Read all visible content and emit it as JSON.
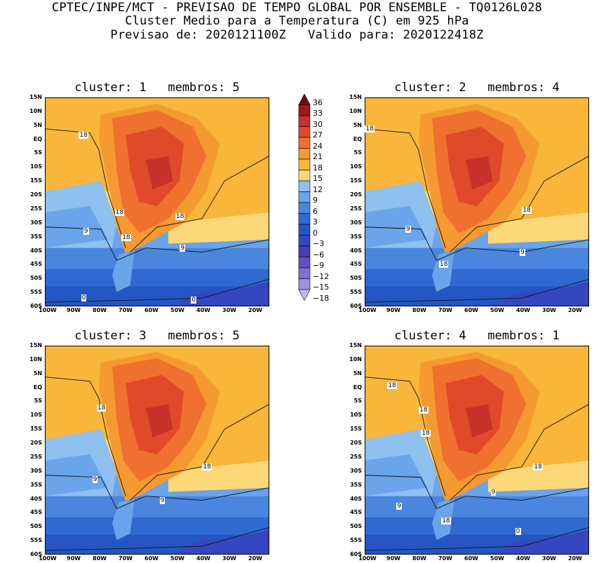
{
  "header": {
    "line1": "CPTEC/INPE/MCT - PREVISAO DE TEMPO GLOBAL POR ENSEMBLE - TQ0126L028",
    "line2": "Cluster Medio para a Temperatura (C) em 925 hPa",
    "line3": "Previsao de: 2020121100Z   Valido para: 2020122418Z"
  },
  "lat_labels": [
    "15N",
    "10N",
    "5N",
    "EQ",
    "5S",
    "10S",
    "15S",
    "20S",
    "25S",
    "30S",
    "35S",
    "40S",
    "45S",
    "50S",
    "55S",
    "60S"
  ],
  "lon_labels": [
    "100W",
    "90W",
    "80W",
    "70W",
    "60W",
    "50W",
    "40W",
    "30W",
    "20W"
  ],
  "colorbar": {
    "labels": [
      "36",
      "33",
      "30",
      "27",
      "24",
      "21",
      "18",
      "15",
      "12",
      "9",
      "6",
      "3",
      "0",
      "-3",
      "-6",
      "-9",
      "-12",
      "-15",
      "-18"
    ],
    "colors": [
      "#7a0a0a",
      "#a01818",
      "#c8302a",
      "#e04a2a",
      "#f07030",
      "#f59a30",
      "#f8b63a",
      "#fcd878",
      "#8ec0f0",
      "#6aa4ea",
      "#4a86de",
      "#2e6ad0",
      "#2456c4",
      "#3446c0",
      "#4a3cb8",
      "#6450c4",
      "#8270d0",
      "#a290dc",
      "#c8b8ec"
    ],
    "ticks": [
      "36",
      "33",
      "30",
      "27",
      "24",
      "21",
      "18",
      "15",
      "12",
      "9",
      "6",
      "3",
      "0",
      "−3",
      "−6",
      "−9",
      "−12",
      "−15",
      "−18"
    ]
  },
  "panels": [
    {
      "title": "cluster: 1   membros: 5",
      "contour_labels": [
        "18",
        "18",
        "18",
        "18",
        "9",
        "9",
        "0",
        "0"
      ]
    },
    {
      "title": "cluster: 2   membros: 4",
      "contour_labels": [
        "18",
        "18",
        "18",
        "9",
        "9"
      ]
    },
    {
      "title": "cluster: 3   membros: 5",
      "contour_labels": [
        "18",
        "18",
        "9",
        "9"
      ]
    },
    {
      "title": "cluster: 4   membros: 1",
      "contour_labels": [
        "18",
        "18",
        "18",
        "18",
        "18",
        "9",
        "9",
        "0"
      ]
    }
  ]
}
